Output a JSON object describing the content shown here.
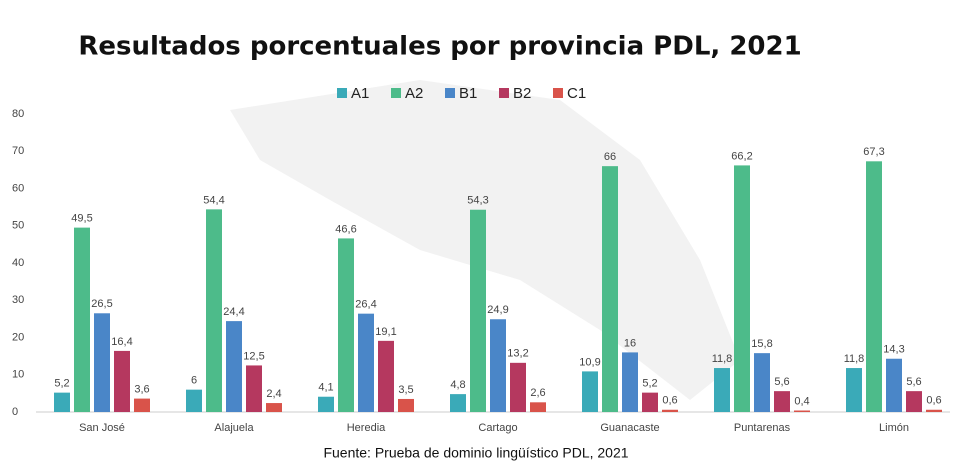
{
  "chart_data": {
    "type": "bar",
    "title": "Resultados porcentuales por provincia PDL, 2021",
    "caption": "Fuente: Prueba de dominio lingüístico PDL, 2021",
    "categories": [
      "San José",
      "Alajuela",
      "Heredia",
      "Cartago",
      "Guanacaste",
      "Puntarenas",
      "Limón"
    ],
    "series": [
      {
        "name": "A1",
        "color": "#3aaab8",
        "values": [
          5.2,
          6,
          4.1,
          4.8,
          10.9,
          11.8,
          11.8
        ],
        "value_labels": [
          "5,2",
          "6",
          "4,1",
          "4,8",
          "10,9",
          "11,8",
          "11,8"
        ]
      },
      {
        "name": "A2",
        "color": "#4dbb8a",
        "values": [
          49.5,
          54.4,
          46.6,
          54.3,
          66,
          66.2,
          67.3
        ],
        "value_labels": [
          "49,5",
          "54,4",
          "46,6",
          "54,3",
          "66",
          "66,2",
          "67,3"
        ]
      },
      {
        "name": "B1",
        "color": "#4a86c8",
        "values": [
          26.5,
          24.4,
          26.4,
          24.9,
          16,
          15.8,
          14.3
        ],
        "value_labels": [
          "26,5",
          "24,4",
          "26,4",
          "24,9",
          "16",
          "15,8",
          "14,3"
        ]
      },
      {
        "name": "B2",
        "color": "#b5385f",
        "values": [
          16.4,
          12.5,
          19.1,
          13.2,
          5.2,
          5.6,
          5.6
        ],
        "value_labels": [
          "16,4",
          "12,5",
          "19,1",
          "13,2",
          "5,2",
          "5,6",
          "5,6"
        ]
      },
      {
        "name": "C1",
        "color": "#d9534a",
        "values": [
          3.6,
          2.4,
          3.5,
          2.6,
          0.6,
          0.4,
          0.6
        ],
        "value_labels": [
          "3,6",
          "2,4",
          "3,5",
          "2,6",
          "0,6",
          "0,4",
          "0,6"
        ]
      }
    ],
    "ylim": [
      0,
      80
    ],
    "yticks": [
      0,
      10,
      20,
      30,
      40,
      50,
      60,
      70,
      80
    ],
    "grid": false,
    "legend": "top"
  }
}
